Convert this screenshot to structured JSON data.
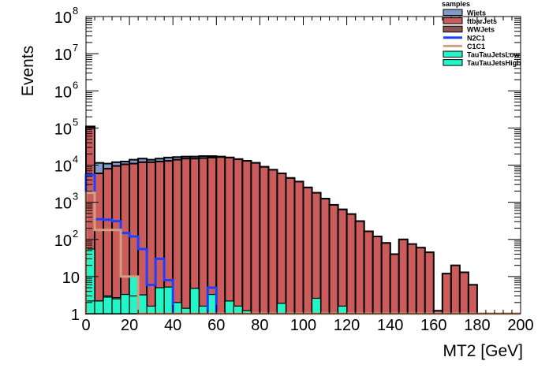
{
  "chart_data": {
    "type": "bar",
    "xlabel": "MT2 [GeV]",
    "ylabel": "Events",
    "xlim": [
      0,
      200
    ],
    "ylim": [
      1,
      100000000
    ],
    "yscale": "log",
    "grid": false,
    "legend_placement": "top-right",
    "legend_title": "samples",
    "bin_width": 4,
    "x_ticks": [
      "0",
      "20",
      "40",
      "60",
      "80",
      "100",
      "120",
      "140",
      "160",
      "180",
      "200"
    ],
    "y_ticks": [
      {
        "base": "1",
        "exp": ""
      },
      {
        "base": "10",
        "exp": ""
      },
      {
        "base": "10",
        "exp": "2"
      },
      {
        "base": "10",
        "exp": "3"
      },
      {
        "base": "10",
        "exp": "4"
      },
      {
        "base": "10",
        "exp": "5"
      },
      {
        "base": "10",
        "exp": "6"
      },
      {
        "base": "10",
        "exp": "7"
      },
      {
        "base": "10",
        "exp": "8"
      }
    ],
    "x": [
      0,
      4,
      8,
      12,
      16,
      20,
      24,
      28,
      32,
      36,
      40,
      44,
      48,
      52,
      56,
      60,
      64,
      68,
      72,
      76,
      80,
      84,
      88,
      92,
      96,
      100,
      104,
      108,
      112,
      116,
      120,
      124,
      128,
      132,
      136,
      140,
      144,
      148,
      152,
      156,
      160,
      164,
      168,
      172,
      176,
      180,
      184,
      188,
      192,
      196
    ],
    "stack_series": [
      {
        "name": "Wjets",
        "color": "#7f9acb",
        "values": [
          110000,
          11500,
          11000,
          12000,
          12500,
          14000,
          15000,
          14000,
          15000,
          16000,
          16500,
          17000,
          17000,
          17500,
          17500,
          17000,
          16000,
          14500,
          13000,
          11500,
          9000,
          7500,
          6000,
          4500,
          3600,
          2500,
          1800,
          1250,
          850,
          640,
          480,
          310,
          165,
          120,
          80,
          0,
          6,
          0,
          0,
          0,
          0,
          0,
          0,
          0,
          0,
          0,
          0,
          0,
          0,
          0
        ]
      },
      {
        "name": "ttbarJets",
        "color": "#cc5c5c",
        "values": [
          100000,
          6000,
          8000,
          9500,
          10500,
          11000,
          12000,
          12000,
          12500,
          13000,
          14000,
          15000,
          15000,
          15500,
          16000,
          16500,
          16000,
          14500,
          13000,
          11500,
          9000,
          7500,
          6000,
          4500,
          3600,
          2500,
          1800,
          1250,
          850,
          640,
          480,
          310,
          165,
          120,
          80,
          40,
          100,
          75,
          60,
          45,
          1.2,
          12,
          20,
          13,
          6,
          0,
          0,
          0,
          0,
          0
        ]
      },
      {
        "name": "WWJets",
        "color": "#8c5655",
        "values": []
      }
    ],
    "signal_series": [
      {
        "name": "N2C1",
        "color": "#1f3fff",
        "values": [
          5500,
          350,
          340,
          310,
          150,
          120,
          55,
          6,
          30,
          8,
          1,
          1,
          1,
          1,
          5,
          1,
          1,
          1,
          1,
          1,
          1,
          1,
          1,
          1,
          1,
          1,
          1,
          1,
          1,
          1,
          1,
          1,
          1,
          1,
          1,
          1,
          1,
          1,
          1,
          1,
          1,
          1,
          1,
          1,
          1,
          1,
          1,
          1,
          1,
          1
        ]
      },
      {
        "name": "C1C1",
        "color": "#d0a080",
        "values": [
          1800,
          180,
          180,
          180,
          10,
          10,
          1,
          1,
          1,
          1,
          1,
          1,
          1,
          1,
          1,
          1,
          1,
          1,
          1,
          1,
          1,
          1,
          1,
          1,
          1,
          1,
          1,
          1,
          1,
          1,
          1,
          1,
          1,
          1,
          1,
          1,
          1,
          1,
          1,
          1,
          1,
          1,
          1,
          1,
          1,
          1,
          1,
          1,
          1,
          1
        ]
      }
    ],
    "filled_series": [
      {
        "name": "TauTauJetsLow",
        "color": "#23f5c7",
        "values": [
          55,
          2.2,
          3,
          2.7,
          3.3,
          10,
          3.2,
          1,
          1,
          1,
          1,
          1,
          1,
          1,
          1,
          1,
          1,
          1,
          1,
          1,
          1,
          1,
          1,
          1,
          1,
          1,
          1,
          1,
          1,
          1,
          1,
          1,
          1,
          1,
          1,
          1,
          1,
          1,
          1,
          1,
          1,
          1,
          1,
          1,
          1,
          1,
          1,
          1,
          1,
          1
        ]
      },
      {
        "name": "TauTauJetsHigh",
        "color": "#23f5c7",
        "values": [
          2.2,
          2.2,
          2.8,
          2.5,
          3.3,
          3.0,
          3.2,
          1.6,
          5.0,
          5.2,
          2.0,
          1.4,
          4.8,
          1.6,
          3.3,
          1.0,
          2.2,
          1.6,
          1.2,
          1,
          1,
          1,
          1.9,
          1,
          1,
          1,
          2.6,
          1,
          1,
          1.6,
          1,
          1,
          1,
          1,
          1,
          1,
          1,
          1,
          1,
          1,
          1,
          1,
          1,
          1,
          1,
          1,
          1,
          1,
          1,
          1
        ]
      }
    ]
  }
}
